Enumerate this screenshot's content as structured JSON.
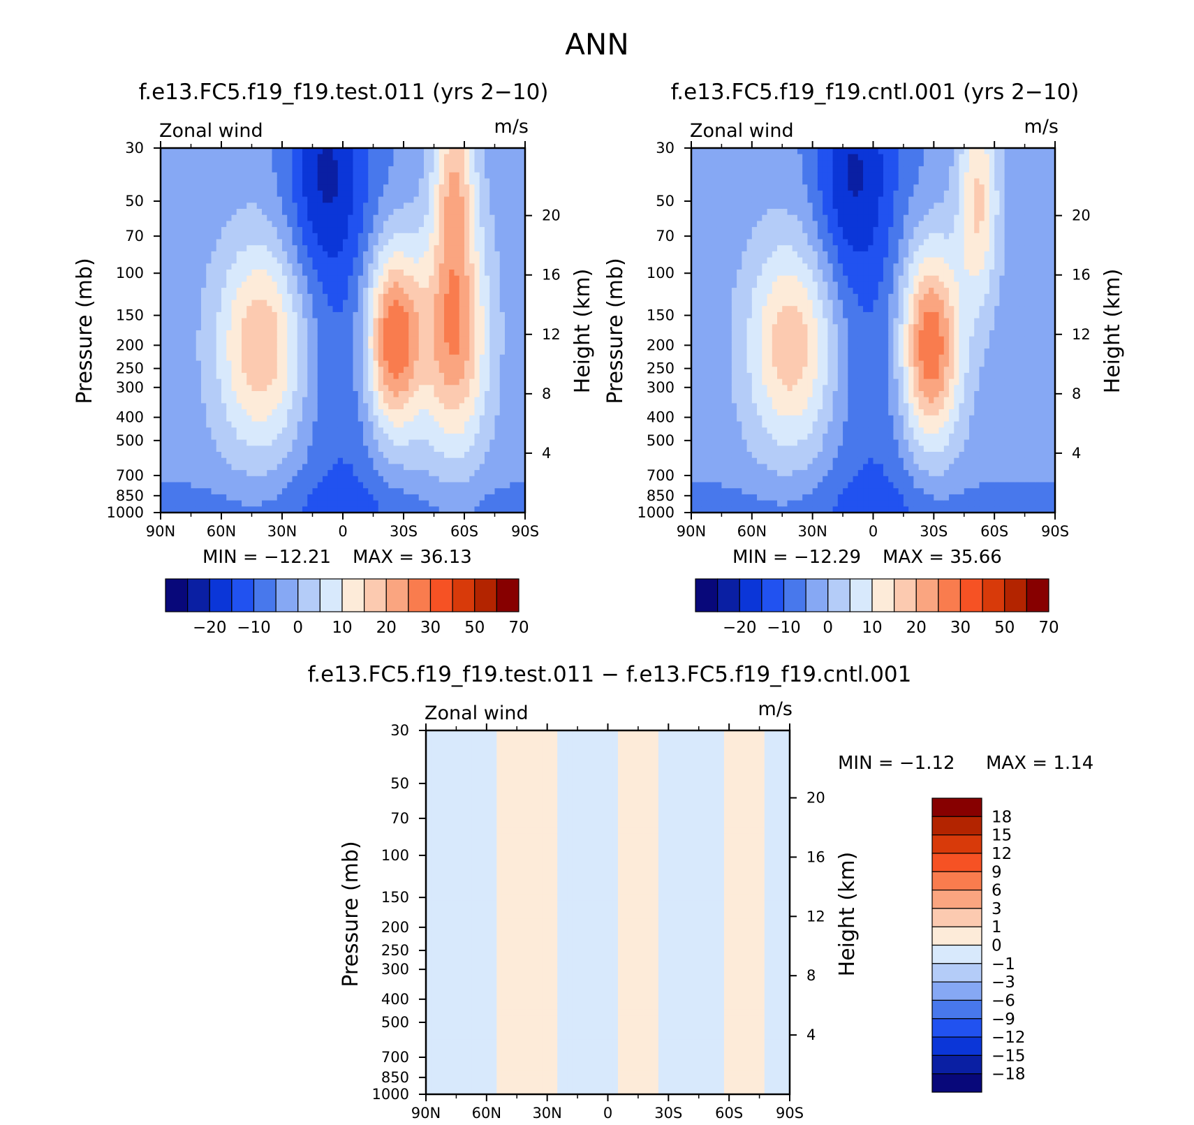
{
  "page_title": "ANN",
  "colors": {
    "main_scale": [
      "#08087a",
      "#0a1fa3",
      "#0b36d8",
      "#2152f0",
      "#4878ec",
      "#86a8f4",
      "#b4ccf8",
      "#d8e9fc",
      "#fdebd9",
      "#fccab0",
      "#faa580",
      "#f97c4e",
      "#f65224",
      "#d83a0a",
      "#b32400",
      "#870000"
    ],
    "diff_scale": [
      "#08087a",
      "#0a1fa3",
      "#0b36d8",
      "#2152f0",
      "#4878ec",
      "#86a8f4",
      "#b4ccf8",
      "#d8e9fc",
      "#fdebd9",
      "#fccab0",
      "#faa580",
      "#f97c4e",
      "#f65224",
      "#d83a0a",
      "#b32400",
      "#870000"
    ]
  },
  "chart_data": [
    {
      "type": "heatmap",
      "title": "f.e13.FC5.f19_f19.test.011 (yrs 2−10)",
      "left_label": "Zonal wind",
      "right_label": "m/s",
      "ylabel": "Pressure (mb)",
      "ylabel_right": "Height (km)",
      "x_ticks": [
        "90N",
        "60N",
        "30N",
        "0",
        "30S",
        "60S",
        "90S"
      ],
      "y_ticks": [
        30,
        50,
        70,
        100,
        150,
        200,
        250,
        300,
        400,
        500,
        700,
        850,
        1000
      ],
      "y_right_ticks": [
        20,
        16,
        12,
        8,
        4
      ],
      "ylim": [
        1000,
        30
      ],
      "x_range": [
        90,
        -90
      ],
      "min_text": "MIN = −12.21",
      "max_text": "MAX = 36.13",
      "colorbar_labels": [
        "−20",
        "−10",
        "0",
        "10",
        "20",
        "30",
        "50",
        "70"
      ],
      "levels": [
        -25,
        -20,
        -15,
        -10,
        -5,
        0,
        5,
        10,
        15,
        20,
        25,
        30,
        40,
        50,
        60,
        70,
        80
      ],
      "features": [
        {
          "lat": 40,
          "p": 200,
          "value": 23,
          "dlat": 22,
          "dp": 1.0
        },
        {
          "lat": -25,
          "p": 190,
          "value": 35,
          "dlat": 14,
          "dp": 0.9
        },
        {
          "lat": -55,
          "p": 180,
          "value": 28,
          "dlat": 16,
          "dp": 1.1
        },
        {
          "lat": -55,
          "p": 40,
          "value": 20,
          "dlat": 10,
          "dp": 0.9
        },
        {
          "lat": 10,
          "p": 40,
          "value": -12,
          "dlat": 18,
          "dp": 1.0
        }
      ]
    },
    {
      "type": "heatmap",
      "title": "f.e13.FC5.f19_f19.cntl.001 (yrs 2−10)",
      "left_label": "Zonal wind",
      "right_label": "m/s",
      "ylabel": "Pressure (mb)",
      "ylabel_right": "Height (km)",
      "x_ticks": [
        "90N",
        "60N",
        "30N",
        "0",
        "30S",
        "60S",
        "90S"
      ],
      "y_ticks": [
        30,
        50,
        70,
        100,
        150,
        200,
        250,
        300,
        400,
        500,
        700,
        850,
        1000
      ],
      "y_right_ticks": [
        20,
        16,
        12,
        8,
        4
      ],
      "ylim": [
        1000,
        30
      ],
      "x_range": [
        90,
        -90
      ],
      "min_text": "MIN = −12.29",
      "max_text": "MAX = 35.66",
      "colorbar_labels": [
        "−20",
        "−10",
        "0",
        "10",
        "20",
        "30",
        "50",
        "70"
      ],
      "levels": [
        -25,
        -20,
        -15,
        -10,
        -5,
        0,
        5,
        10,
        15,
        20,
        25,
        30,
        40,
        50,
        60,
        70,
        80
      ],
      "features": [
        {
          "lat": 40,
          "p": 200,
          "value": 22,
          "dlat": 22,
          "dp": 1.0
        },
        {
          "lat": -28,
          "p": 200,
          "value": 34,
          "dlat": 15,
          "dp": 0.95
        },
        {
          "lat": -52,
          "p": 50,
          "value": 19,
          "dlat": 10,
          "dp": 1.0
        },
        {
          "lat": 12,
          "p": 40,
          "value": -12,
          "dlat": 18,
          "dp": 1.0
        }
      ]
    },
    {
      "type": "heatmap",
      "title": "f.e13.FC5.f19_f19.test.011 − f.e13.FC5.f19_f19.cntl.001",
      "left_label": "Zonal wind",
      "right_label": "m/s",
      "ylabel": "Pressure (mb)",
      "ylabel_right": "Height (km)",
      "x_ticks": [
        "90N",
        "60N",
        "30N",
        "0",
        "30S",
        "60S",
        "90S"
      ],
      "y_ticks": [
        30,
        50,
        70,
        100,
        150,
        200,
        250,
        300,
        400,
        500,
        700,
        850,
        1000
      ],
      "y_right_ticks": [
        20,
        16,
        12,
        8,
        4
      ],
      "ylim": [
        1000,
        30
      ],
      "x_range": [
        90,
        -90
      ],
      "min_text": "MIN = −1.12",
      "max_text": "MAX = 1.14",
      "colorbar_labels": [
        "18",
        "15",
        "12",
        "9",
        "6",
        "3",
        "1",
        "0",
        "−1",
        "−3",
        "−6",
        "−9",
        "−12",
        "−15",
        "−18"
      ],
      "levels": [
        -21,
        -18,
        -15,
        -12,
        -9,
        -6,
        -3,
        -1,
        0,
        1,
        3,
        6,
        9,
        12,
        15,
        18,
        21
      ],
      "bands": [
        {
          "lat_from": 90,
          "lat_to": 55,
          "value": -0.4
        },
        {
          "lat_from": 55,
          "lat_to": 25,
          "value": 0.4
        },
        {
          "lat_from": 25,
          "lat_to": -5,
          "value": -0.3
        },
        {
          "lat_from": -5,
          "lat_to": -25,
          "value": 0.3
        },
        {
          "lat_from": -25,
          "lat_to": -58,
          "value": -0.4
        },
        {
          "lat_from": -58,
          "lat_to": -78,
          "value": 0.4
        },
        {
          "lat_from": -78,
          "lat_to": -90,
          "value": -0.4
        }
      ]
    }
  ]
}
